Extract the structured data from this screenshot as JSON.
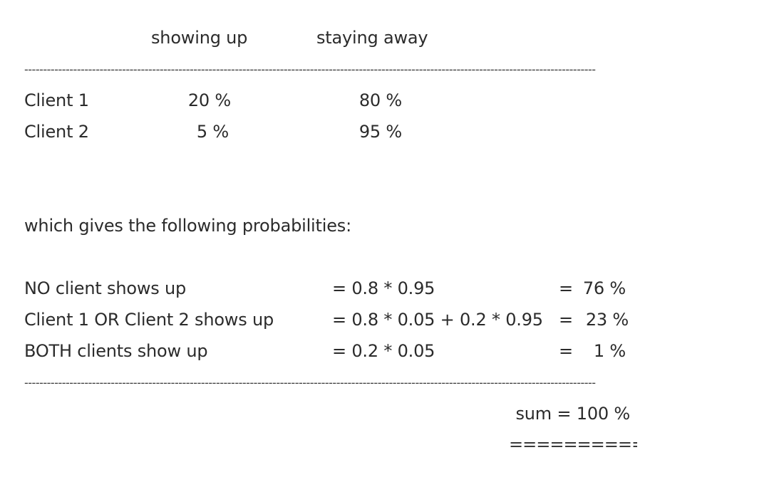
{
  "header": {
    "col_showing": "showing up",
    "col_staying": "staying away"
  },
  "separator_text": "--------------------------------------------------------------------------------------------------------------------------------------------------------",
  "clients": [
    {
      "name": "Client 1",
      "showing": "20 %",
      "staying": "80 %"
    },
    {
      "name": "Client 2",
      "showing": "5 %",
      "staying": "95 %"
    }
  ],
  "intro": "which gives the following probabilities:",
  "outcomes": [
    {
      "label": "NO client shows up",
      "formula": "= 0.8 * 0.95",
      "eq": "=",
      "result": "76 %"
    },
    {
      "label": "Client 1 OR Client 2 shows up",
      "formula": "= 0.8 * 0.05 + 0.2 * 0.95",
      "eq": "=",
      "result": "23 %"
    },
    {
      "label": "BOTH clients show up",
      "formula": "= 0.2 * 0.05",
      "eq": "=",
      "result": "1 %"
    }
  ],
  "sum": {
    "text": "sum = 100 %",
    "underline": "============"
  }
}
